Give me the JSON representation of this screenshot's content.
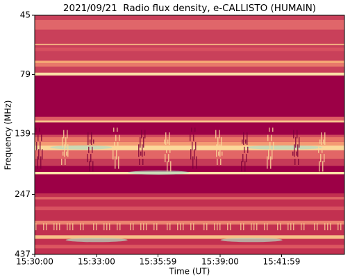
{
  "chart_data": {
    "type": "spectrogram",
    "title": "2021/09/21  Radio flux density, e-CALLISTO (HUMAIN)",
    "xlabel": "Time (UT)",
    "ylabel": "Frequency (MHz)",
    "xlim": [
      55800,
      56702
    ],
    "xticks": [
      {
        "value": 55800,
        "label": "15:30:00"
      },
      {
        "value": 55980,
        "label": "15:33:00"
      },
      {
        "value": 56159,
        "label": "15:35:59"
      },
      {
        "value": 56340,
        "label": "15:39:00"
      },
      {
        "value": 56519,
        "label": "15:41:59"
      }
    ],
    "ylim": [
      45,
      437
    ],
    "yticks": [
      45,
      79,
      139,
      247,
      437
    ],
    "ylog": true,
    "yinverted": true
  }
}
